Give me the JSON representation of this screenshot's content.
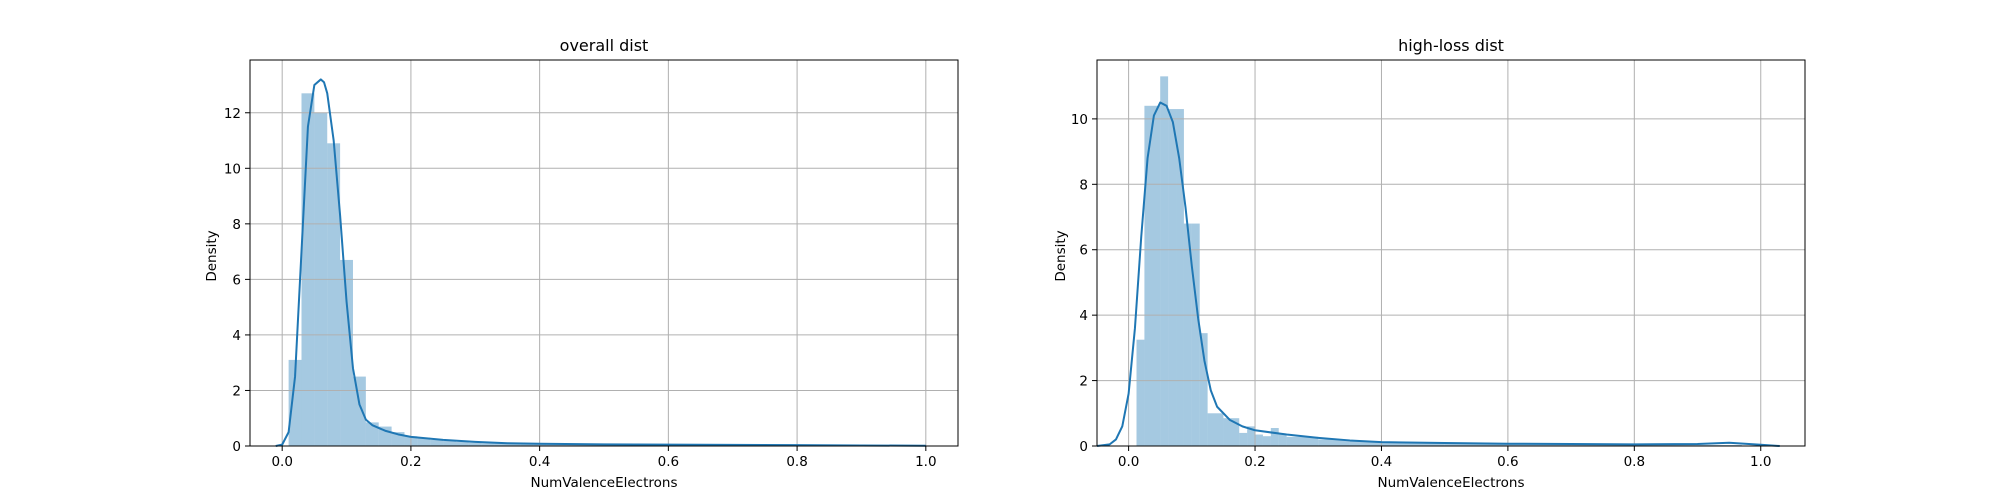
{
  "chart_data": [
    {
      "type": "histogram",
      "title": "overall dist",
      "xlabel": "NumValenceElectrons",
      "ylabel": "Density",
      "xlim": [
        -0.05,
        1.05
      ],
      "ylim": [
        0,
        13.9
      ],
      "xticks": [
        0.0,
        0.2,
        0.4,
        0.6,
        0.8,
        1.0
      ],
      "xtick_labels": [
        "0.0",
        "0.2",
        "0.4",
        "0.6",
        "0.8",
        "1.0"
      ],
      "yticks": [
        0,
        2,
        4,
        6,
        8,
        10,
        12
      ],
      "ytick_labels": [
        "0",
        "2",
        "4",
        "6",
        "8",
        "10",
        "12"
      ],
      "grid": true,
      "bin_width": 0.02,
      "bins": [
        {
          "x0": 0.01,
          "x1": 0.03,
          "y": 3.1
        },
        {
          "x0": 0.03,
          "x1": 0.05,
          "y": 12.7
        },
        {
          "x0": 0.05,
          "x1": 0.07,
          "y": 12.0
        },
        {
          "x0": 0.07,
          "x1": 0.09,
          "y": 10.9
        },
        {
          "x0": 0.09,
          "x1": 0.11,
          "y": 6.7
        },
        {
          "x0": 0.11,
          "x1": 0.13,
          "y": 2.5
        },
        {
          "x0": 0.13,
          "x1": 0.15,
          "y": 0.85
        },
        {
          "x0": 0.15,
          "x1": 0.17,
          "y": 0.7
        },
        {
          "x0": 0.17,
          "x1": 0.19,
          "y": 0.5
        },
        {
          "x0": 0.19,
          "x1": 0.21,
          "y": 0.35
        },
        {
          "x0": 0.21,
          "x1": 0.23,
          "y": 0.3
        },
        {
          "x0": 0.23,
          "x1": 0.25,
          "y": 0.22
        },
        {
          "x0": 0.25,
          "x1": 0.27,
          "y": 0.18
        },
        {
          "x0": 0.27,
          "x1": 0.29,
          "y": 0.15
        },
        {
          "x0": 0.29,
          "x1": 0.31,
          "y": 0.12
        },
        {
          "x0": 0.31,
          "x1": 0.33,
          "y": 0.1
        },
        {
          "x0": 0.33,
          "x1": 0.35,
          "y": 0.09
        },
        {
          "x0": 0.35,
          "x1": 0.37,
          "y": 0.08
        },
        {
          "x0": 0.37,
          "x1": 0.39,
          "y": 0.07
        },
        {
          "x0": 0.39,
          "x1": 0.41,
          "y": 0.06
        },
        {
          "x0": 0.41,
          "x1": 0.45,
          "y": 0.05
        },
        {
          "x0": 0.45,
          "x1": 0.5,
          "y": 0.04
        },
        {
          "x0": 0.5,
          "x1": 0.6,
          "y": 0.035
        },
        {
          "x0": 0.6,
          "x1": 0.7,
          "y": 0.03
        },
        {
          "x0": 0.7,
          "x1": 0.8,
          "y": 0.025
        },
        {
          "x0": 0.8,
          "x1": 0.9,
          "y": 0.02
        },
        {
          "x0": 0.9,
          "x1": 0.99,
          "y": 0.015
        }
      ],
      "kde": {
        "x": [
          -0.01,
          0.0,
          0.01,
          0.02,
          0.03,
          0.04,
          0.05,
          0.06,
          0.065,
          0.07,
          0.08,
          0.09,
          0.1,
          0.11,
          0.12,
          0.13,
          0.14,
          0.16,
          0.18,
          0.2,
          0.25,
          0.3,
          0.35,
          0.4,
          0.5,
          0.6,
          0.7,
          0.8,
          0.9,
          1.0
        ],
        "y": [
          0.0,
          0.05,
          0.5,
          2.5,
          7.0,
          11.5,
          13.0,
          13.2,
          13.1,
          12.7,
          11.0,
          8.3,
          5.2,
          2.8,
          1.5,
          0.95,
          0.75,
          0.55,
          0.42,
          0.33,
          0.22,
          0.15,
          0.1,
          0.08,
          0.06,
          0.05,
          0.04,
          0.03,
          0.02,
          0.01
        ]
      }
    },
    {
      "type": "histogram",
      "title": "high-loss dist",
      "xlabel": "NumValenceElectrons",
      "ylabel": "Density",
      "xlim": [
        -0.05,
        1.07
      ],
      "ylim": [
        0,
        11.8
      ],
      "xticks": [
        0.0,
        0.2,
        0.4,
        0.6,
        0.8,
        1.0
      ],
      "xtick_labels": [
        "0.0",
        "0.2",
        "0.4",
        "0.6",
        "0.8",
        "1.0"
      ],
      "yticks": [
        0,
        2,
        4,
        6,
        8,
        10
      ],
      "ytick_labels": [
        "0",
        "2",
        "4",
        "6",
        "8",
        "10"
      ],
      "grid": true,
      "bin_width": 0.0125,
      "bins": [
        {
          "x0": 0.0125,
          "x1": 0.025,
          "y": 3.25
        },
        {
          "x0": 0.025,
          "x1": 0.05,
          "y": 10.4
        },
        {
          "x0": 0.05,
          "x1": 0.0625,
          "y": 11.3
        },
        {
          "x0": 0.0625,
          "x1": 0.075,
          "y": 10.3
        },
        {
          "x0": 0.075,
          "x1": 0.0875,
          "y": 10.3
        },
        {
          "x0": 0.0875,
          "x1": 0.1,
          "y": 6.8
        },
        {
          "x0": 0.1,
          "x1": 0.1125,
          "y": 6.8
        },
        {
          "x0": 0.1125,
          "x1": 0.125,
          "y": 3.45
        },
        {
          "x0": 0.125,
          "x1": 0.15,
          "y": 1.0
        },
        {
          "x0": 0.15,
          "x1": 0.175,
          "y": 0.85
        },
        {
          "x0": 0.175,
          "x1": 0.1875,
          "y": 0.4
        },
        {
          "x0": 0.1875,
          "x1": 0.2,
          "y": 0.6
        },
        {
          "x0": 0.2,
          "x1": 0.2125,
          "y": 0.35
        },
        {
          "x0": 0.2125,
          "x1": 0.225,
          "y": 0.3
        },
        {
          "x0": 0.225,
          "x1": 0.2375,
          "y": 0.55
        },
        {
          "x0": 0.2375,
          "x1": 0.25,
          "y": 0.35
        },
        {
          "x0": 0.25,
          "x1": 0.3,
          "y": 0.28
        },
        {
          "x0": 0.3,
          "x1": 0.35,
          "y": 0.2
        },
        {
          "x0": 0.35,
          "x1": 0.4,
          "y": 0.14
        },
        {
          "x0": 0.4,
          "x1": 0.5,
          "y": 0.1
        },
        {
          "x0": 0.5,
          "x1": 0.6,
          "y": 0.07
        },
        {
          "x0": 0.6,
          "x1": 0.7,
          "y": 0.05
        },
        {
          "x0": 0.7,
          "x1": 0.8,
          "y": 0.04
        },
        {
          "x0": 0.8,
          "x1": 0.9,
          "y": 0.03
        },
        {
          "x0": 0.9,
          "x1": 0.97,
          "y": 0.03
        }
      ],
      "kde": {
        "x": [
          -0.05,
          -0.03,
          -0.02,
          -0.01,
          0.0,
          0.01,
          0.02,
          0.03,
          0.04,
          0.05,
          0.06,
          0.07,
          0.08,
          0.09,
          0.1,
          0.11,
          0.12,
          0.13,
          0.14,
          0.16,
          0.18,
          0.2,
          0.25,
          0.3,
          0.35,
          0.4,
          0.5,
          0.6,
          0.7,
          0.8,
          0.9,
          0.95,
          1.0,
          1.03
        ],
        "y": [
          0.0,
          0.05,
          0.2,
          0.6,
          1.6,
          3.6,
          6.4,
          8.8,
          10.1,
          10.5,
          10.4,
          9.9,
          8.8,
          7.3,
          5.5,
          3.9,
          2.6,
          1.7,
          1.2,
          0.8,
          0.6,
          0.48,
          0.35,
          0.25,
          0.17,
          0.12,
          0.09,
          0.07,
          0.06,
          0.05,
          0.06,
          0.1,
          0.04,
          0.0
        ]
      }
    }
  ]
}
